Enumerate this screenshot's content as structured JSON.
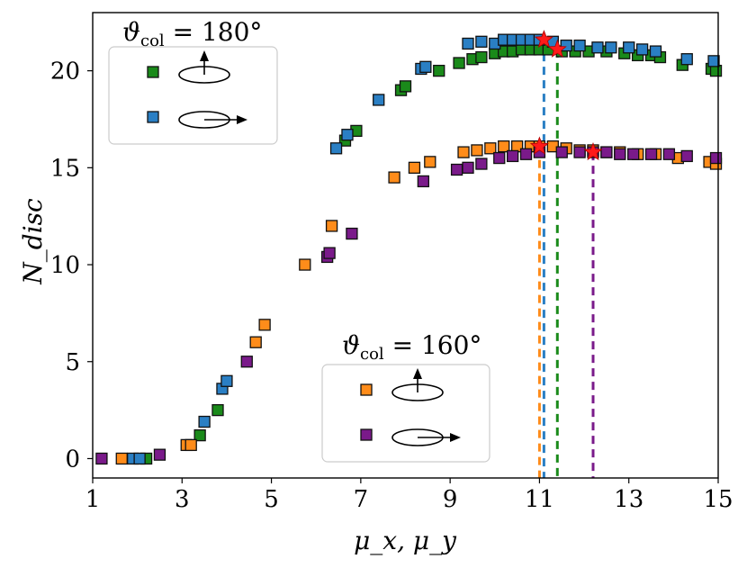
{
  "chart_data": {
    "type": "scatter",
    "xlabel": "μ_x, μ_y",
    "ylabel": "N_disc",
    "xlim": [
      1,
      15
    ],
    "ylim": [
      -1,
      23
    ],
    "xticks": [
      1,
      3,
      5,
      7,
      9,
      11,
      13,
      15
    ],
    "yticks": [
      0,
      5,
      10,
      15,
      20
    ],
    "marker": "square",
    "series": [
      {
        "name": "ϑcol=180°, vertical",
        "color": "#1a8a1a",
        "points": [
          [
            2.2,
            0
          ],
          [
            3.4,
            1.2
          ],
          [
            3.8,
            2.5
          ],
          [
            6.65,
            16.4
          ],
          [
            6.9,
            16.9
          ],
          [
            7.9,
            19.0
          ],
          [
            8.0,
            19.2
          ],
          [
            8.75,
            20.0
          ],
          [
            9.2,
            20.4
          ],
          [
            9.5,
            20.6
          ],
          [
            9.7,
            20.7
          ],
          [
            10.0,
            20.9
          ],
          [
            10.2,
            21.0
          ],
          [
            10.4,
            21.0
          ],
          [
            10.6,
            21.1
          ],
          [
            10.8,
            21.1
          ],
          [
            11.0,
            21.1
          ],
          [
            11.2,
            21.1
          ],
          [
            11.5,
            21.0
          ],
          [
            11.8,
            21.0
          ],
          [
            12.1,
            21.0
          ],
          [
            12.5,
            21.0
          ],
          [
            12.9,
            20.9
          ],
          [
            13.2,
            20.8
          ],
          [
            13.5,
            20.8
          ],
          [
            13.7,
            20.7
          ],
          [
            14.2,
            20.3
          ],
          [
            14.85,
            20.1
          ],
          [
            14.95,
            20.0
          ]
        ]
      },
      {
        "name": "ϑcol=180°, horizontal",
        "color": "#2a7fc4",
        "points": [
          [
            1.9,
            0
          ],
          [
            2.05,
            0
          ],
          [
            3.5,
            1.9
          ],
          [
            3.9,
            3.6
          ],
          [
            4.0,
            4.0
          ],
          [
            6.45,
            16.0
          ],
          [
            6.7,
            16.7
          ],
          [
            7.4,
            18.5
          ],
          [
            8.35,
            20.1
          ],
          [
            8.45,
            20.2
          ],
          [
            9.4,
            21.4
          ],
          [
            9.7,
            21.5
          ],
          [
            10.0,
            21.4
          ],
          [
            10.2,
            21.6
          ],
          [
            10.4,
            21.6
          ],
          [
            10.6,
            21.6
          ],
          [
            10.8,
            21.6
          ],
          [
            11.0,
            21.6
          ],
          [
            11.3,
            21.5
          ],
          [
            11.6,
            21.3
          ],
          [
            11.9,
            21.3
          ],
          [
            12.3,
            21.2
          ],
          [
            12.6,
            21.2
          ],
          [
            13.0,
            21.2
          ],
          [
            13.3,
            21.1
          ],
          [
            13.6,
            21.0
          ],
          [
            14.3,
            20.6
          ],
          [
            14.9,
            20.5
          ]
        ]
      },
      {
        "name": "ϑcol=160°, vertical",
        "color": "#ff8c1a",
        "points": [
          [
            1.65,
            0
          ],
          [
            3.1,
            0.7
          ],
          [
            3.2,
            0.7
          ],
          [
            4.65,
            6.0
          ],
          [
            4.85,
            6.9
          ],
          [
            5.75,
            10.0
          ],
          [
            6.35,
            12.0
          ],
          [
            7.75,
            14.5
          ],
          [
            8.2,
            15.0
          ],
          [
            8.55,
            15.3
          ],
          [
            9.3,
            15.8
          ],
          [
            9.6,
            15.9
          ],
          [
            9.9,
            16.0
          ],
          [
            10.2,
            16.1
          ],
          [
            10.5,
            16.1
          ],
          [
            10.8,
            16.1
          ],
          [
            11.0,
            16.1
          ],
          [
            11.3,
            16.1
          ],
          [
            11.6,
            16.0
          ],
          [
            11.9,
            15.9
          ],
          [
            12.2,
            15.9
          ],
          [
            12.5,
            15.8
          ],
          [
            12.8,
            15.8
          ],
          [
            13.2,
            15.7
          ],
          [
            13.6,
            15.7
          ],
          [
            14.1,
            15.5
          ],
          [
            14.8,
            15.3
          ],
          [
            14.95,
            15.2
          ]
        ]
      },
      {
        "name": "ϑcol=160°, horizontal",
        "color": "#7a1a8a",
        "points": [
          [
            1.2,
            0
          ],
          [
            2.5,
            0.2
          ],
          [
            4.45,
            5.0
          ],
          [
            6.25,
            10.4
          ],
          [
            6.3,
            10.6
          ],
          [
            6.8,
            11.6
          ],
          [
            8.4,
            14.3
          ],
          [
            9.15,
            14.9
          ],
          [
            9.4,
            15.0
          ],
          [
            9.7,
            15.2
          ],
          [
            10.1,
            15.5
          ],
          [
            10.4,
            15.6
          ],
          [
            10.7,
            15.7
          ],
          [
            11.0,
            15.8
          ],
          [
            11.5,
            15.8
          ],
          [
            11.9,
            15.8
          ],
          [
            12.2,
            15.8
          ],
          [
            12.5,
            15.8
          ],
          [
            12.8,
            15.7
          ],
          [
            13.1,
            15.7
          ],
          [
            13.5,
            15.7
          ],
          [
            13.9,
            15.7
          ],
          [
            14.3,
            15.6
          ],
          [
            14.95,
            15.5
          ]
        ]
      }
    ],
    "optima": [
      {
        "series": "ϑcol=180°, horizontal",
        "x": 11.1,
        "y": 21.6,
        "color": "#2a7fc4"
      },
      {
        "series": "ϑcol=180°, vertical",
        "x": 11.4,
        "y": 21.1,
        "color": "#1a8a1a"
      },
      {
        "series": "ϑcol=160°, vertical",
        "x": 11.0,
        "y": 16.1,
        "color": "#ff8c1a"
      },
      {
        "series": "ϑcol=160°, horizontal",
        "x": 12.2,
        "y": 15.8,
        "color": "#7a1a8a"
      }
    ],
    "legends": [
      {
        "title_symbol": "ϑ",
        "title_sub": "col",
        "title_value": " = 180°",
        "location": "upper-left",
        "entries": [
          {
            "color": "#1a8a1a",
            "glyph": "vertical-arrow"
          },
          {
            "color": "#2a7fc4",
            "glyph": "horizontal-arrow"
          }
        ]
      },
      {
        "title_symbol": "ϑ",
        "title_sub": "col",
        "title_value": " = 160°",
        "location": "lower-center",
        "entries": [
          {
            "color": "#ff8c1a",
            "glyph": "vertical-arrow"
          },
          {
            "color": "#7a1a8a",
            "glyph": "horizontal-arrow"
          }
        ]
      }
    ]
  }
}
